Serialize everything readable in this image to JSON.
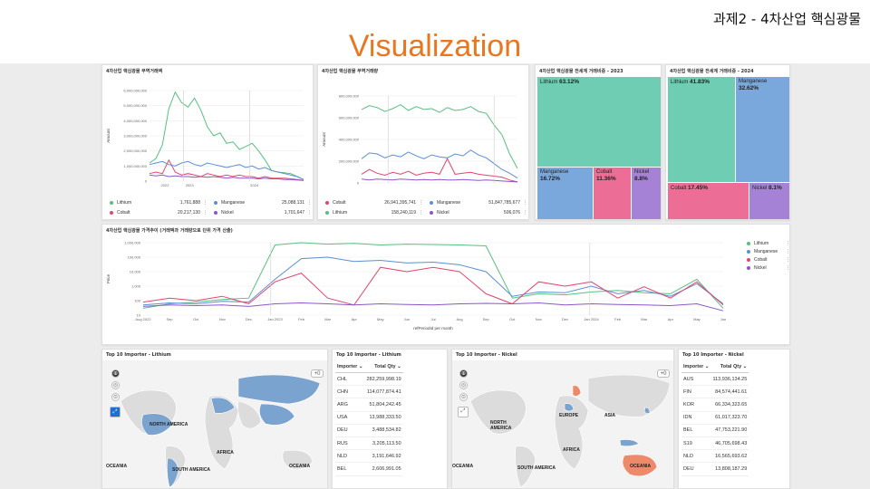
{
  "slide": {
    "subtitle": "과제2 - 4차산업 핵심광물",
    "title": "Visualization"
  },
  "panels": {
    "amount_chart": {
      "title": "4차산업 핵심광물 무역거래액",
      "ylabel": "Amount",
      "legend": [
        {
          "name": "Lithium",
          "value": "1,761,888",
          "color": "#57c07f"
        },
        {
          "name": "Manganese",
          "value": "25,088,131",
          "color": "#5b8fd4"
        },
        {
          "name": "Cobalt",
          "value": "20,217,130",
          "color": "#e4456e"
        },
        {
          "name": "Nickel",
          "value": "1,701,647",
          "color": "#8c55cc"
        }
      ]
    },
    "volume_chart": {
      "title": "4차산업 핵심광물 무역거래량",
      "ylabel": "Amount",
      "legend": [
        {
          "name": "Cobalt",
          "value": "26,941,395,741",
          "color": "#e4456e"
        },
        {
          "name": "Manganese",
          "value": "51,847,785,677",
          "color": "#5b8fd4"
        },
        {
          "name": "Lithium",
          "value": "158,240,119",
          "color": "#57c07f"
        },
        {
          "name": "Nickel",
          "value": "506,076",
          "color": "#8c55cc"
        }
      ]
    },
    "treemap_2023": {
      "title": "4차산업 핵심광물 전세계 거래비중 - 2023",
      "cells": [
        {
          "name": "Lithium",
          "pct": "63.12%",
          "color": "#6ecdb3"
        },
        {
          "name": "Manganese",
          "pct": "16.72%",
          "color": "#7aa8dc"
        },
        {
          "name": "Cobalt",
          "pct": "11.36%",
          "color": "#ec6d96"
        },
        {
          "name": "Nickel",
          "pct": "8.8%",
          "color": "#a682d6"
        }
      ]
    },
    "treemap_2024": {
      "title": "4차산업 핵심광물 전세계 거래비중 - 2024",
      "cells": [
        {
          "name": "Lithium",
          "pct": "41.83%",
          "color": "#6ecdb3"
        },
        {
          "name": "Manganese",
          "pct": "32.62%",
          "color": "#7aa8dc"
        },
        {
          "name": "Cobalt",
          "pct": "17.45%",
          "color": "#ec6d96"
        },
        {
          "name": "Nickel",
          "pct": "8.1%",
          "color": "#a682d6"
        }
      ]
    },
    "price_chart": {
      "title": "4차산업 핵심광물 가격추이 (거래액과 거래량으로 단위 가격 산출)",
      "ylabel": "Price",
      "xlabel": "refPeriodId per month",
      "legend": [
        {
          "name": "Lithium",
          "color": "#57c07f"
        },
        {
          "name": "Manganese",
          "color": "#5b8fd4"
        },
        {
          "name": "Cobalt",
          "color": "#e4456e"
        },
        {
          "name": "Nickel",
          "color": "#8c55cc"
        }
      ]
    },
    "map_lithium": {
      "title": "Top 10 Importer - Lithium",
      "labels": [
        "NORTH AMERICA",
        "AFRICA",
        "SOUTH AMERICA",
        "OCEANIA",
        "OCEANIA"
      ],
      "zoom": "+0"
    },
    "table_lithium": {
      "title": "Top 10 Importer - Lithium",
      "col_importer": "Importer",
      "col_qty": "Total Qty",
      "rows": [
        [
          "CHL",
          "282,259,998.19"
        ],
        [
          "CHN",
          "114,077,874.41"
        ],
        [
          "ARG",
          "51,804,242.45"
        ],
        [
          "USA",
          "13,988,333.50"
        ],
        [
          "DEU",
          "3,488,534.82"
        ],
        [
          "RUS",
          "3,205,113.50"
        ],
        [
          "NLD",
          "3,191,646.92"
        ],
        [
          "BEL",
          "2,606,991.05"
        ]
      ]
    },
    "map_nickel": {
      "title": "Top 10 Importer - Nickel",
      "labels": [
        "EUROPE",
        "ASIA",
        "NORTH AMERICA",
        "AFRICA",
        "SOUTH AMERICA",
        "OCEANIA",
        "OCEANIA"
      ],
      "zoom": "+0"
    },
    "table_nickel": {
      "title": "Top 10 Importer - Nickel",
      "col_importer": "Importer",
      "col_qty": "Total Qty",
      "rows": [
        [
          "AUS",
          "113,936,134.25"
        ],
        [
          "FIN",
          "84,574,441.61"
        ],
        [
          "KOR",
          "66,334,323.65"
        ],
        [
          "IDN",
          "61,017,323.70"
        ],
        [
          "BEL",
          "47,753,221.90"
        ],
        [
          "S19",
          "46,705,698.43"
        ],
        [
          "NLD",
          "16,565,693.62"
        ],
        [
          "DEU",
          "13,808,187.29"
        ]
      ]
    }
  },
  "chart_data": [
    {
      "type": "line",
      "title": "4차산업 핵심광물 무역거래액",
      "ylabel": "Amount",
      "y_ticks": [
        "6,000,000,000",
        "5,000,000,000",
        "4,000,000,000",
        "3,000,000,000",
        "2,000,000,000",
        "1,000,000,000",
        "0"
      ],
      "x_ticks": [
        "2022",
        "2023",
        "2024"
      ],
      "ylim": [
        0,
        6000000000
      ],
      "series": [
        {
          "name": "Lithium",
          "values": [
            1200000000.0,
            1500000000.0,
            2400000000.0,
            4800000000.0,
            5900000000.0,
            5200000000.0,
            4900000000.0,
            5500000000.0,
            4700000000.0,
            3600000000.0,
            3000000000.0,
            3200000000.0,
            2500000000.0,
            2600000000.0,
            2100000000.0,
            2300000000.0,
            2500000000.0,
            2000000000.0,
            1400000000.0,
            700000000.0,
            600000000.0,
            550000000.0,
            500000000.0,
            300000000.0,
            100000000.0
          ]
        },
        {
          "name": "Manganese",
          "values": [
            1100000000.0,
            1200000000.0,
            1300000000.0,
            1100000000.0,
            1000000000.0,
            1200000000.0,
            1300000000.0,
            1100000000.0,
            1000000000.0,
            1200000000.0,
            1100000000.0,
            1000000000.0,
            900000000.0,
            1000000000.0,
            1100000000.0,
            900000000.0,
            1000000000.0,
            800000000.0,
            900000000.0,
            700000000.0,
            600000000.0,
            500000000.0,
            400000000.0,
            300000000.0,
            100000000.0
          ]
        },
        {
          "name": "Cobalt",
          "values": [
            500000000.0,
            600000000.0,
            500000000.0,
            1400000000.0,
            600000000.0,
            400000000.0,
            500000000.0,
            400000000.0,
            300000000.0,
            500000000.0,
            400000000.0,
            300000000.0,
            400000000.0,
            300000000.0,
            400000000.0,
            300000000.0,
            300000000.0,
            200000000.0,
            300000000.0,
            200000000.0,
            200000000.0,
            200000000.0,
            150000000.0,
            100000000.0,
            50000000.0
          ]
        },
        {
          "name": "Nickel",
          "values": [
            400000000.0,
            350000000.0,
            400000000.0,
            300000000.0,
            350000000.0,
            300000000.0,
            300000000.0,
            250000000.0,
            300000000.0,
            250000000.0,
            300000000.0,
            250000000.0,
            200000000.0,
            250000000.0,
            200000000.0,
            200000000.0,
            200000000.0,
            150000000.0,
            200000000.0,
            150000000.0,
            150000000.0,
            100000000.0,
            100000000.0,
            80000000.0,
            50000000.0
          ]
        }
      ]
    },
    {
      "type": "line",
      "title": "4차산업 핵심광물 무역거래량",
      "ylabel": "Amount",
      "y_ticks": [
        "800,000,000",
        "600,000,000",
        "400,000,000",
        "200,000,000",
        "0"
      ],
      "ylim": [
        0,
        900000000
      ],
      "series": [
        {
          "name": "Lithium",
          "values": [
            760000000.0,
            800000000.0,
            780000000.0,
            740000000.0,
            770000000.0,
            810000000.0,
            750000000.0,
            790000000.0,
            760000000.0,
            770000000.0,
            730000000.0,
            780000000.0,
            750000000.0,
            760000000.0,
            790000000.0,
            740000000.0,
            720000000.0,
            600000000.0,
            500000000.0,
            300000000.0,
            150000000.0
          ]
        },
        {
          "name": "Manganese",
          "values": [
            250000000.0,
            310000000.0,
            300000000.0,
            260000000.0,
            290000000.0,
            270000000.0,
            320000000.0,
            280000000.0,
            250000000.0,
            290000000.0,
            270000000.0,
            260000000.0,
            300000000.0,
            280000000.0,
            340000000.0,
            290000000.0,
            260000000.0,
            200000000.0,
            140000000.0,
            100000000.0,
            50000000.0
          ]
        },
        {
          "name": "Cobalt",
          "values": [
            90000000.0,
            140000000.0,
            100000000.0,
            80000000.0,
            110000000.0,
            90000000.0,
            120000000.0,
            80000000.0,
            100000000.0,
            110000000.0,
            90000000.0,
            250000000.0,
            90000000.0,
            100000000.0,
            110000000.0,
            90000000.0,
            80000000.0,
            70000000.0,
            60000000.0,
            30000000.0,
            10000000.0
          ]
        },
        {
          "name": "Nickel",
          "values": [
            40000000.0,
            30000000.0,
            40000000.0,
            35000000.0,
            30000000.0,
            40000000.0,
            35000000.0,
            30000000.0,
            35000000.0,
            30000000.0,
            35000000.0,
            30000000.0,
            30000000.0,
            35000000.0,
            30000000.0,
            25000000.0,
            30000000.0,
            25000000.0,
            20000000.0,
            15000000.0,
            10000000.0
          ]
        }
      ]
    },
    {
      "type": "line",
      "title": "4차산업 핵심광물 가격추이 (거래액과 거래량으로 단위 가격 산출)",
      "ylabel": "Price",
      "xlabel": "refPeriodId per month",
      "log_scale": true,
      "y_ticks": [
        "1,000,000",
        "100,000",
        "10,000",
        "1,000",
        "100",
        "10"
      ],
      "x_ticks": [
        "Aug 2022",
        "Sep",
        "Oct",
        "Nov",
        "Dec",
        "Jan 2023",
        "Feb",
        "Mar",
        "Apr",
        "May",
        "Jun",
        "Jul",
        "Aug",
        "Sep",
        "Oct",
        "Nov",
        "Dec",
        "Jan 2024",
        "Feb",
        "Mar",
        "Apr",
        "May",
        "Jun"
      ],
      "series": [
        {
          "name": "Lithium",
          "values": [
            30,
            60,
            80,
            120,
            150,
            700000,
            1000000,
            800000,
            900000,
            700000,
            800000,
            750000,
            700000,
            600000,
            150,
            300,
            250,
            400,
            500,
            350,
            300,
            3000,
            30
          ]
        },
        {
          "name": "Manganese",
          "values": [
            50,
            70,
            60,
            90,
            80,
            3000,
            80000,
            100000,
            50000,
            60000,
            40000,
            45000,
            30000,
            10000,
            200,
            400,
            350,
            1000,
            300,
            500,
            200,
            1500,
            60
          ]
        },
        {
          "name": "Cobalt",
          "values": [
            80,
            150,
            100,
            200,
            60,
            2000,
            8000,
            150,
            50,
            20000,
            10000,
            20000,
            10000,
            300,
            60,
            2000,
            1000,
            2000,
            150,
            900,
            150,
            2000,
            50
          ]
        },
        {
          "name": "Nickel",
          "values": [
            40,
            50,
            45,
            50,
            40,
            60,
            70,
            60,
            50,
            60,
            55,
            50,
            60,
            65,
            60,
            70,
            50,
            60,
            55,
            50,
            45,
            60,
            20
          ]
        }
      ]
    },
    {
      "type": "table",
      "title": "4차산업 핵심광물 전세계 거래비중 - 2023",
      "categories": [
        "Lithium",
        "Manganese",
        "Cobalt",
        "Nickel"
      ],
      "values": [
        63.12,
        16.72,
        11.36,
        8.8
      ]
    },
    {
      "type": "table",
      "title": "4차산업 핵심광물 전세계 거래비중 - 2024",
      "categories": [
        "Lithium",
        "Manganese",
        "Cobalt",
        "Nickel"
      ],
      "values": [
        41.83,
        32.62,
        17.45,
        8.1
      ]
    }
  ]
}
